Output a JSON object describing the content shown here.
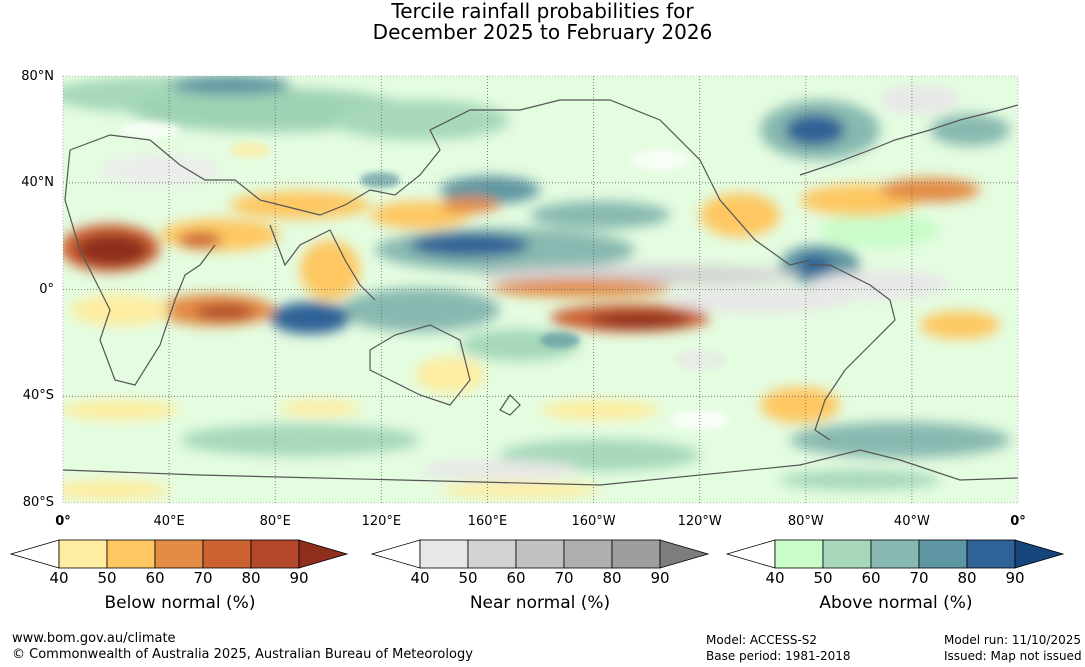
{
  "title": {
    "line1": "Tercile rainfall probabilities for",
    "line2": "December 2025 to February 2026"
  },
  "map": {
    "lat_labels": [
      "80°N",
      "40°N",
      "0°",
      "40°S",
      "80°S"
    ],
    "lon_labels": [
      "0°",
      "40°E",
      "80°E",
      "120°E",
      "160°E",
      "160°W",
      "120°W",
      "80°W",
      "40°W",
      "0°"
    ]
  },
  "colorbars": [
    {
      "title": "Below normal (%)",
      "ticks": [
        "40",
        "50",
        "60",
        "70",
        "80",
        "90"
      ],
      "colors": [
        "#ffffff",
        "#feeda0",
        "#fec762",
        "#e38c45",
        "#cc6132",
        "#b3482a",
        "#8e2e1b"
      ]
    },
    {
      "title": "Near normal (%)",
      "ticks": [
        "40",
        "50",
        "60",
        "70",
        "80",
        "90"
      ],
      "colors": [
        "#ffffff",
        "#e7e7e7",
        "#d3d3d3",
        "#c2c2c2",
        "#afafaf",
        "#9e9e9e",
        "#7d7d7d"
      ]
    },
    {
      "title": "Above normal (%)",
      "ticks": [
        "40",
        "50",
        "60",
        "70",
        "80",
        "90"
      ],
      "colors": [
        "#ffffff",
        "#c9fcc9",
        "#a6d8b9",
        "#88b9b0",
        "#5e97a3",
        "#2f6296",
        "#16457e"
      ]
    }
  ],
  "footer": {
    "website": "www.bom.gov.au/climate",
    "copyright": "© Commonwealth of Australia 2025, Australian Bureau of Meteorology",
    "model": "Model: ACCESS-S2",
    "base_period": "Base period: 1981-2018",
    "model_run": "Model run: 11/10/2025",
    "issued": "Issued: Map not issued"
  }
}
